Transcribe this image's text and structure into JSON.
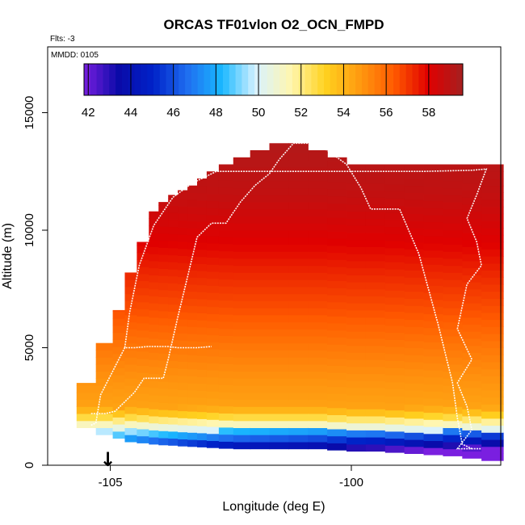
{
  "chart_data": {
    "type": "heatmap",
    "title": "ORCAS TF01vlon O2_OCN_FMPD",
    "flights_label": "Flts: -3",
    "date_label": "MMDD: 0105",
    "xlabel": "Longitude (deg E)",
    "ylabel": "Altitude (m)",
    "xlim": [
      -106.3,
      -96.9
    ],
    "ylim": [
      0,
      17800
    ],
    "xticks": [
      -105,
      -100
    ],
    "xtick_labels": [
      "-105",
      "-100"
    ],
    "yticks": [
      0,
      5000,
      10000,
      15000
    ],
    "ytick_labels": [
      "0",
      "5000",
      "10000",
      "15000"
    ],
    "colorbar": {
      "min": 41.8,
      "max": 59.6,
      "ticks": [
        42,
        44,
        46,
        48,
        50,
        52,
        54,
        56,
        58
      ],
      "tick_labels": [
        "42",
        "44",
        "46",
        "48",
        "50",
        "52",
        "54",
        "56",
        "58"
      ],
      "colors": [
        "#7a1fe0",
        "#0a0aa8",
        "#0022c8",
        "#1f6ef0",
        "#19b8ff",
        "#d8f2ff",
        "#fff6b0",
        "#ffd21f",
        "#ff9a10",
        "#ff5a00",
        "#e00000",
        "#a52020"
      ]
    },
    "profile": [
      {
        "lon": -105.5,
        "top": 3500,
        "bottom": 1600
      },
      {
        "lon": -105.1,
        "top": 5200,
        "bottom": 1300
      },
      {
        "lon": -104.8,
        "top": 6600,
        "bottom": 1150
      },
      {
        "lon": -104.6,
        "top": 8200,
        "bottom": 1000
      },
      {
        "lon": -104.3,
        "top": 9500,
        "bottom": 950
      },
      {
        "lon": -104.1,
        "top": 10800,
        "bottom": 900
      },
      {
        "lon": -103.9,
        "top": 11200,
        "bottom": 870
      },
      {
        "lon": -103.7,
        "top": 11500,
        "bottom": 850
      },
      {
        "lon": -103.5,
        "top": 11700,
        "bottom": 820
      },
      {
        "lon": -103.3,
        "top": 11900,
        "bottom": 800
      },
      {
        "lon": -103.1,
        "top": 12200,
        "bottom": 780
      },
      {
        "lon": -102.9,
        "top": 12500,
        "bottom": 750
      },
      {
        "lon": -102.6,
        "top": 12800,
        "bottom": 720
      },
      {
        "lon": -102.3,
        "top": 13100,
        "bottom": 700
      },
      {
        "lon": -101.9,
        "top": 13400,
        "bottom": 700
      },
      {
        "lon": -101.5,
        "top": 13700,
        "bottom": 700
      },
      {
        "lon": -101.1,
        "top": 13700,
        "bottom": 700
      },
      {
        "lon": -100.7,
        "top": 13400,
        "bottom": 700
      },
      {
        "lon": -100.3,
        "top": 13100,
        "bottom": 650
      },
      {
        "lon": -99.9,
        "top": 12800,
        "bottom": 600
      },
      {
        "lon": -99.5,
        "top": 12800,
        "bottom": 600
      },
      {
        "lon": -99.1,
        "top": 12800,
        "bottom": 550
      },
      {
        "lon": -98.7,
        "top": 12800,
        "bottom": 500
      },
      {
        "lon": -98.3,
        "top": 12800,
        "bottom": 450
      },
      {
        "lon": -97.9,
        "top": 12800,
        "bottom": 400
      },
      {
        "lon": -97.5,
        "top": 12800,
        "bottom": 300
      },
      {
        "lon": -97.1,
        "top": 12800,
        "bottom": 200
      }
    ],
    "field_levels": [
      {
        "alt": 13500,
        "value": 59.2
      },
      {
        "alt": 11500,
        "value": 58.8
      },
      {
        "alt": 9500,
        "value": 58.0
      },
      {
        "alt": 8000,
        "value": 57.2
      },
      {
        "alt": 6500,
        "value": 56.5
      },
      {
        "alt": 5000,
        "value": 55.6
      },
      {
        "alt": 3800,
        "value": 55.0
      },
      {
        "alt": 3000,
        "value": 54.7
      },
      {
        "alt": 2500,
        "value": 54.5
      },
      {
        "alt": 2200,
        "value": 53.5
      },
      {
        "alt": 2000,
        "value": 52.5
      },
      {
        "alt": 1800,
        "value": 51.5
      },
      {
        "alt": 1600,
        "value": 50.5
      },
      {
        "alt": 1300,
        "value": 49.0
      },
      {
        "alt": 1000,
        "value": 47.0
      },
      {
        "alt": 700,
        "value": 45.0
      },
      {
        "alt": 300,
        "value": 43.0
      },
      {
        "alt": 0,
        "value": 42.0
      }
    ],
    "flight_tracks": [
      [
        [
          -105.4,
          2200
        ],
        [
          -105.1,
          2200
        ],
        [
          -104.9,
          2300
        ],
        [
          -104.7,
          2700
        ],
        [
          -104.5,
          3100
        ],
        [
          -104.3,
          3700
        ],
        [
          -103.9,
          3700
        ],
        [
          -103.8,
          4500
        ],
        [
          -103.6,
          6300
        ],
        [
          -103.4,
          8000
        ],
        [
          -103.2,
          9700
        ],
        [
          -102.9,
          10300
        ],
        [
          -102.6,
          10300
        ],
        [
          -102.3,
          11200
        ],
        [
          -102.0,
          11900
        ],
        [
          -101.7,
          12400
        ],
        [
          -101.5,
          13000
        ],
        [
          -101.2,
          13700
        ],
        [
          -100.8,
          13700
        ],
        [
          -100.5,
          13400
        ],
        [
          -100.1,
          12800
        ],
        [
          -99.8,
          11800
        ],
        [
          -99.6,
          10900
        ],
        [
          -99.0,
          10900
        ],
        [
          -98.6,
          9000
        ],
        [
          -98.2,
          6000
        ],
        [
          -97.9,
          3500
        ],
        [
          -97.8,
          2000
        ],
        [
          -97.7,
          900
        ],
        [
          -97.5,
          700
        ]
      ],
      [
        [
          -105.4,
          1700
        ],
        [
          -105.3,
          1800
        ],
        [
          -105.2,
          3000
        ],
        [
          -105.0,
          3800
        ],
        [
          -104.8,
          4600
        ],
        [
          -104.7,
          5000
        ],
        [
          -104.5,
          5000
        ],
        [
          -104.2,
          5050
        ],
        [
          -103.8,
          5050
        ],
        [
          -103.6,
          5000
        ],
        [
          -103.2,
          5000
        ],
        [
          -102.9,
          5050
        ]
      ],
      [
        [
          -104.7,
          5000
        ],
        [
          -104.6,
          6500
        ],
        [
          -104.4,
          8500
        ],
        [
          -104.1,
          10200
        ],
        [
          -103.7,
          11400
        ],
        [
          -103.3,
          12000
        ],
        [
          -102.8,
          12500
        ],
        [
          -101.5,
          12500
        ],
        [
          -100.0,
          12500
        ],
        [
          -98.5,
          12500
        ],
        [
          -97.5,
          12550
        ],
        [
          -97.2,
          12600
        ],
        [
          -97.4,
          11500
        ],
        [
          -97.6,
          10500
        ],
        [
          -97.4,
          9500
        ],
        [
          -97.3,
          8500
        ],
        [
          -97.6,
          7700
        ],
        [
          -97.8,
          5800
        ],
        [
          -97.5,
          4500
        ],
        [
          -97.8,
          3500
        ],
        [
          -97.6,
          2500
        ],
        [
          -97.5,
          1500
        ],
        [
          -97.8,
          700
        ],
        [
          -97.3,
          700
        ]
      ]
    ],
    "marker": {
      "lon": -105.05,
      "symbol": "↓"
    }
  }
}
